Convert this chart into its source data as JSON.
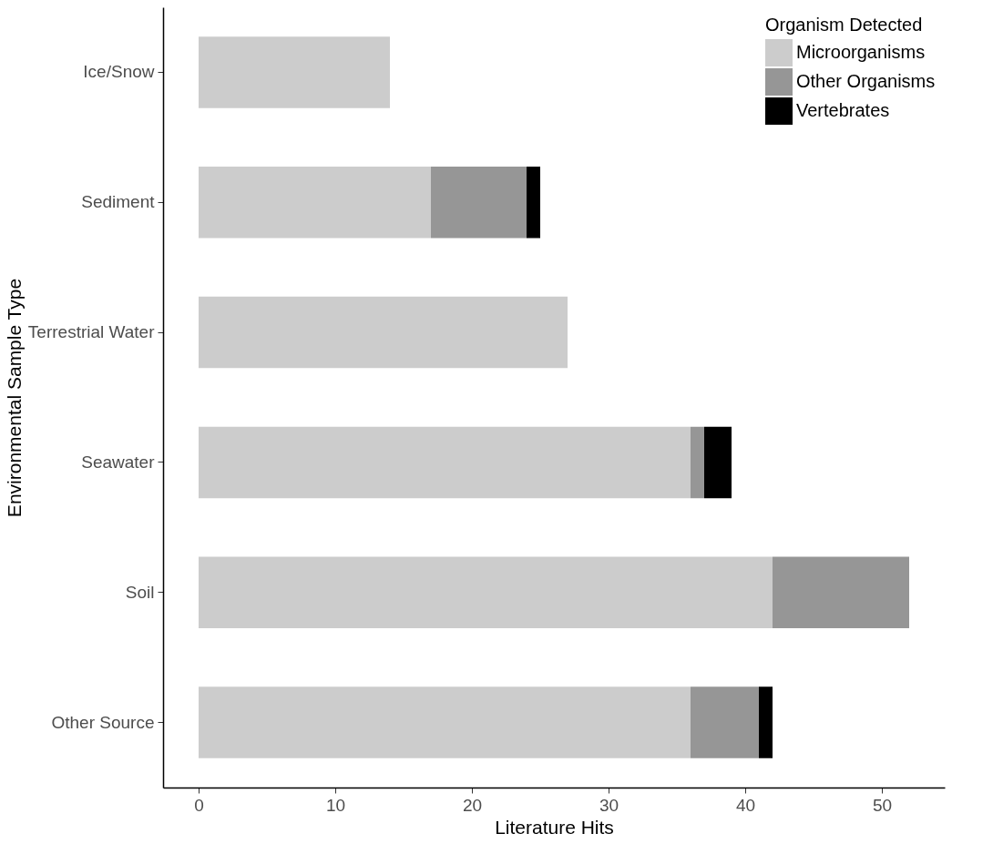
{
  "chart_data": {
    "type": "bar",
    "orientation": "horizontal",
    "stacked": true,
    "xlabel": "Literature Hits",
    "ylabel": "Environmental Sample Type",
    "legend_title": "Organism Detected",
    "categories": [
      "Ice/Snow",
      "Sediment",
      "Terrestrial Water",
      "Seawater",
      "Soil",
      "Other Source"
    ],
    "series": [
      {
        "name": "Microorganisms",
        "color": "#cccccc",
        "values": [
          14,
          17,
          27,
          36,
          42,
          36
        ]
      },
      {
        "name": "Other Organisms",
        "color": "#969696",
        "values": [
          0,
          7,
          0,
          1,
          10,
          5
        ]
      },
      {
        "name": "Vertebrates",
        "color": "#000000",
        "values": [
          0,
          1,
          0,
          2,
          0,
          1
        ]
      }
    ],
    "xlim": [
      -2.6,
      54.6
    ],
    "xticks": [
      0,
      10,
      20,
      30,
      40,
      50
    ],
    "grid": false,
    "legend": "top right"
  }
}
